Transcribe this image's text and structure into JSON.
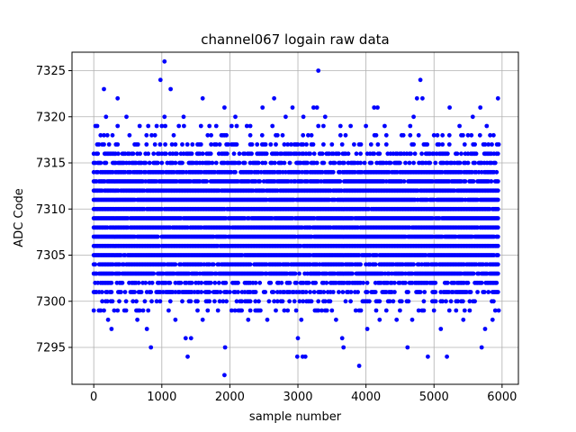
{
  "chart_data": {
    "type": "scatter",
    "title": "channel067 logain raw data",
    "xlabel": "sample number",
    "ylabel": "ADC Code",
    "xlim": [
      -320,
      6240
    ],
    "ylim": [
      7291,
      7327
    ],
    "xticks": [
      0,
      1000,
      2000,
      3000,
      4000,
      5000,
      6000
    ],
    "yticks": [
      7295,
      7300,
      7305,
      7310,
      7315,
      7320,
      7325
    ],
    "grid": true,
    "marker_color": "#0000ff",
    "n_samples": 5950,
    "dense_band": {
      "y_min": 7301,
      "y_max": 7316
    },
    "series": [
      {
        "name": "",
        "points": [
          [
            1040,
            7326
          ],
          [
            3300,
            7325
          ],
          [
            980,
            7324
          ],
          [
            4800,
            7324
          ],
          [
            150,
            7323
          ],
          [
            1130,
            7323
          ],
          [
            350,
            7322
          ],
          [
            1600,
            7322
          ],
          [
            2650,
            7322
          ],
          [
            4750,
            7322
          ],
          [
            4830,
            7322
          ],
          [
            5940,
            7322
          ],
          [
            1920,
            7321
          ],
          [
            2480,
            7321
          ],
          [
            2920,
            7321
          ],
          [
            3230,
            7321
          ],
          [
            3280,
            7321
          ],
          [
            4120,
            7321
          ],
          [
            4170,
            7321
          ],
          [
            5230,
            7321
          ],
          [
            5680,
            7321
          ],
          [
            180,
            7320
          ],
          [
            480,
            7320
          ],
          [
            1040,
            7320
          ],
          [
            1320,
            7320
          ],
          [
            2080,
            7320
          ],
          [
            2820,
            7320
          ],
          [
            3080,
            7320
          ],
          [
            3400,
            7320
          ],
          [
            4700,
            7320
          ],
          [
            5570,
            7320
          ],
          [
            1380,
            7294
          ],
          [
            2990,
            7294
          ],
          [
            3070,
            7294
          ],
          [
            3110,
            7294
          ],
          [
            4910,
            7294
          ],
          [
            5190,
            7294
          ],
          [
            840,
            7295
          ],
          [
            1930,
            7295
          ],
          [
            3670,
            7295
          ],
          [
            4610,
            7295
          ],
          [
            5700,
            7295
          ],
          [
            1920,
            7292
          ],
          [
            3900,
            7293
          ],
          [
            260,
            7297
          ],
          [
            780,
            7297
          ],
          [
            1350,
            7296
          ],
          [
            1430,
            7296
          ],
          [
            3000,
            7296
          ],
          [
            3650,
            7296
          ],
          [
            4020,
            7297
          ],
          [
            5100,
            7297
          ],
          [
            5750,
            7297
          ],
          [
            210,
            7298
          ],
          [
            640,
            7298
          ],
          [
            1200,
            7298
          ],
          [
            1600,
            7298
          ],
          [
            2270,
            7298
          ],
          [
            2550,
            7298
          ],
          [
            3050,
            7298
          ],
          [
            3560,
            7298
          ],
          [
            4200,
            7298
          ],
          [
            4450,
            7298
          ],
          [
            4680,
            7298
          ],
          [
            5430,
            7298
          ],
          [
            5860,
            7298
          ]
        ]
      }
    ]
  }
}
